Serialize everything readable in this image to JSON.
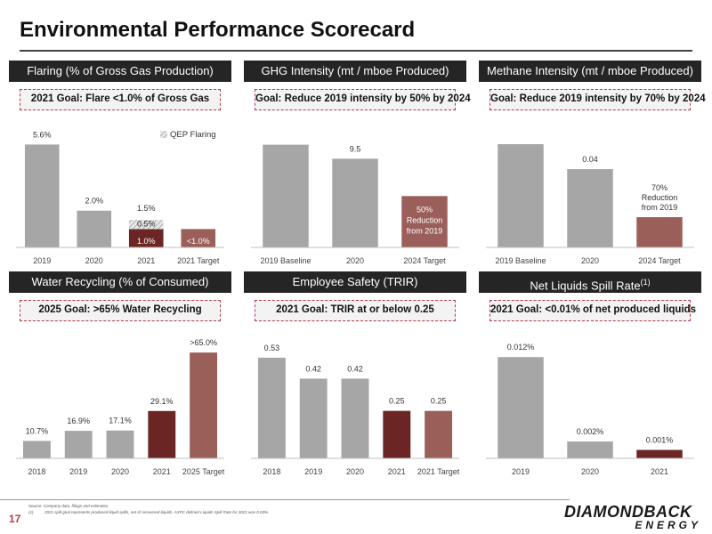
{
  "page": {
    "title": "Environmental Performance Scorecard",
    "page_number": "17",
    "source_note": "Source: Company data, filings and estimates.",
    "footnote_marker": "(1)",
    "footnote_text": "2021 spill goal represents produced liquid spills, net of recovered liquids. AXPC defined Liquids Spill Rate for 2021 was 0.03%.",
    "logo_line1": "DIAMONDBACK",
    "logo_line2": "ENERGY"
  },
  "colors": {
    "gray": "#a6a6a6",
    "dark_red": "#6b2524",
    "mauve": "#9b5f5a",
    "header_bg": "#252525",
    "goal_border": "#b43a4a"
  },
  "panels": [
    {
      "id": "flaring",
      "header": "Flaring (% of Gross Gas Production)",
      "goal": "2021 Goal: Flare <1.0% of Gross Gas"
    },
    {
      "id": "ghg",
      "header": "GHG Intensity (mt / mboe Produced)",
      "goal": "Goal: Reduce 2019 intensity by 50% by 2024"
    },
    {
      "id": "methane",
      "header": "Methane Intensity (mt / mboe Produced)",
      "goal": "Goal: Reduce 2019 intensity by 70% by 2024"
    },
    {
      "id": "water",
      "header": "Water Recycling (% of Consumed)",
      "goal": "2025 Goal: >65% Water Recycling"
    },
    {
      "id": "safety",
      "header": "Employee Safety (TRIR)",
      "goal": "2021 Goal: TRIR at or below 0.25"
    },
    {
      "id": "spill",
      "header": "Net Liquids Spill Rate",
      "header_sup": "(1)",
      "goal": "2021 Goal: <0.01% of net produced liquids"
    }
  ],
  "chart_data": [
    {
      "type": "bar",
      "categories": [
        "2019",
        "2020",
        "2021",
        "2021 Target"
      ],
      "values": [
        5.6,
        2.0,
        1.0,
        1.0
      ],
      "labels": [
        "5.6%",
        "2.0%",
        "1.0%",
        "<1.0%"
      ],
      "colors": [
        "gray",
        "gray",
        "dark_red",
        "mauve"
      ],
      "stack": {
        "index": 2,
        "value": 0.5,
        "label": "0.5%",
        "total_label": "1.5%"
      },
      "legend": {
        "label": "QEP Flaring",
        "position": "top-right"
      },
      "ylim": [
        0,
        6.2
      ]
    },
    {
      "type": "bar",
      "categories": [
        "2019 Baseline",
        "2020",
        "2024 Target"
      ],
      "values": [
        11.0,
        9.5,
        5.5
      ],
      "labels": [
        "",
        "9.5",
        ""
      ],
      "colors": [
        "gray",
        "gray",
        "mauve"
      ],
      "inside_label": {
        "index": 2,
        "lines": [
          "50%",
          "Reduction",
          "from 2019"
        ]
      },
      "ylim": [
        0,
        12.2
      ]
    },
    {
      "type": "bar",
      "categories": [
        "2019 Baseline",
        "2020",
        "2024 Target"
      ],
      "values": [
        0.058,
        0.044,
        0.017
      ],
      "labels": [
        "",
        "0.04",
        ""
      ],
      "colors": [
        "gray",
        "gray",
        "mauve"
      ],
      "above_label": {
        "index": 2,
        "lines": [
          "70%",
          "Reduction",
          "from 2019"
        ]
      },
      "ylim": [
        0,
        0.064
      ]
    },
    {
      "type": "bar",
      "categories": [
        "2018",
        "2019",
        "2020",
        "2021",
        "2025 Target"
      ],
      "values": [
        10.7,
        16.9,
        17.1,
        29.1,
        65.0
      ],
      "labels": [
        "10.7%",
        "16.9%",
        "17.1%",
        "29.1%",
        ">65.0%"
      ],
      "colors": [
        "gray",
        "gray",
        "gray",
        "dark_red",
        "mauve"
      ],
      "ylim": [
        0,
        70
      ]
    },
    {
      "type": "bar",
      "categories": [
        "2018",
        "2019",
        "2020",
        "2021",
        "2021 Target"
      ],
      "values": [
        0.53,
        0.42,
        0.42,
        0.25,
        0.25
      ],
      "labels": [
        "0.53",
        "0.42",
        "0.42",
        "0.25",
        "0.25"
      ],
      "colors": [
        "gray",
        "gray",
        "gray",
        "dark_red",
        "mauve"
      ],
      "ylim": [
        0,
        0.6
      ]
    },
    {
      "type": "bar",
      "categories": [
        "2019",
        "2020",
        "2021"
      ],
      "values": [
        0.012,
        0.002,
        0.001
      ],
      "labels": [
        "0.012%",
        "0.002%",
        "0.001%"
      ],
      "colors": [
        "gray",
        "gray",
        "dark_red"
      ],
      "ylim": [
        0,
        0.0135
      ]
    }
  ]
}
